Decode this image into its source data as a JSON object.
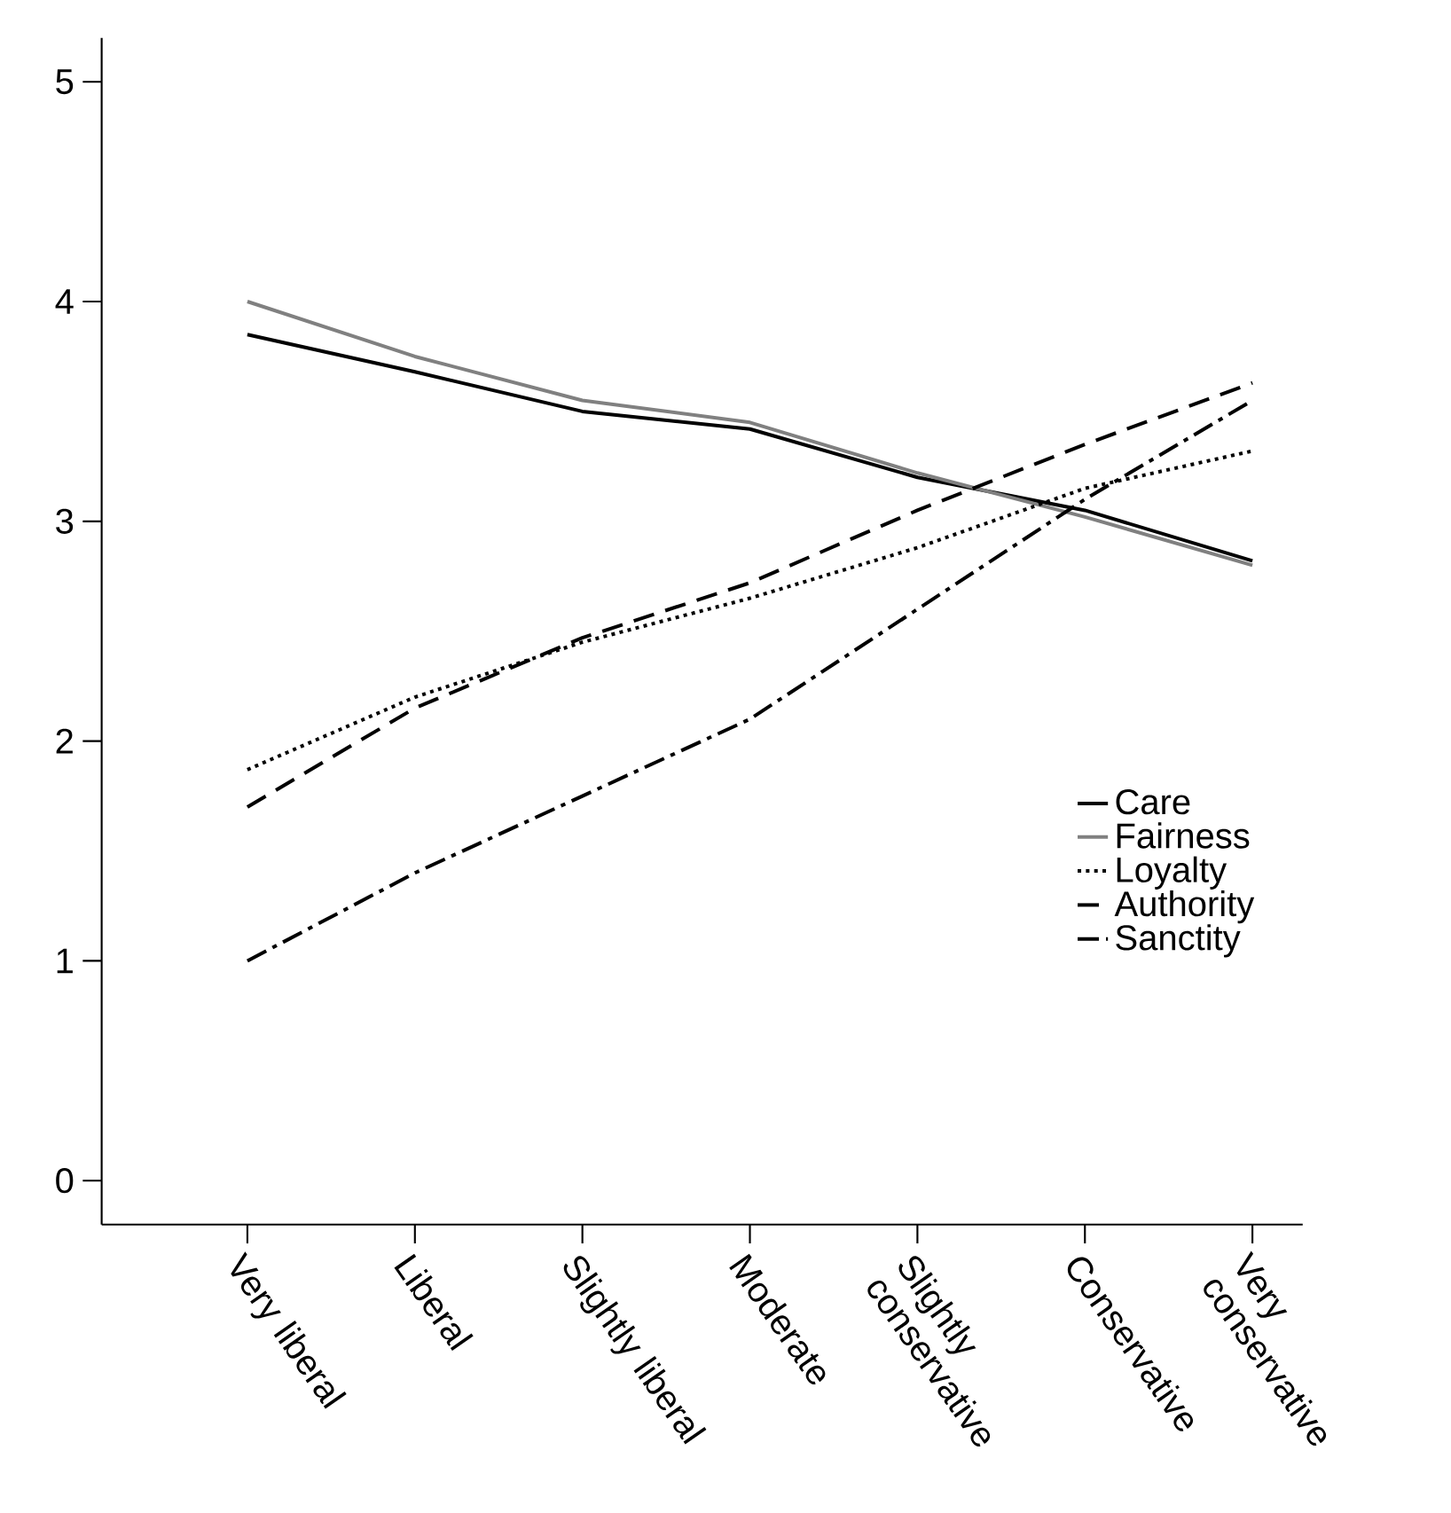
{
  "chart_data": {
    "type": "line",
    "categories": [
      "Very liberal",
      "Liberal",
      "Slightly liberal",
      "Moderate",
      "Slightly conservative",
      "Conservative",
      "Very conservative"
    ],
    "series": [
      {
        "name": "Care",
        "color": "#000000",
        "line_style": "solid",
        "values": [
          3.85,
          3.68,
          3.5,
          3.42,
          3.2,
          3.05,
          2.82
        ]
      },
      {
        "name": "Fairness",
        "color": "#808080",
        "line_style": "solid",
        "values": [
          4.0,
          3.75,
          3.55,
          3.45,
          3.22,
          3.02,
          2.8
        ]
      },
      {
        "name": "Loyalty",
        "color": "#000000",
        "line_style": "dotted",
        "values": [
          1.87,
          2.2,
          2.45,
          2.65,
          2.88,
          3.15,
          3.32
        ]
      },
      {
        "name": "Authority",
        "color": "#000000",
        "line_style": "dashed",
        "values": [
          1.7,
          2.15,
          2.47,
          2.72,
          3.05,
          3.35,
          3.63
        ]
      },
      {
        "name": "Sanctity",
        "color": "#000000",
        "line_style": "dashdot",
        "values": [
          1.0,
          1.4,
          1.75,
          2.1,
          2.6,
          3.1,
          3.55
        ]
      }
    ],
    "ylim": [
      -0.2,
      5.2
    ],
    "yticks": [
      0,
      1,
      2,
      3,
      4,
      5
    ],
    "grid": false,
    "legend": "bottom right",
    "marker": "none"
  }
}
